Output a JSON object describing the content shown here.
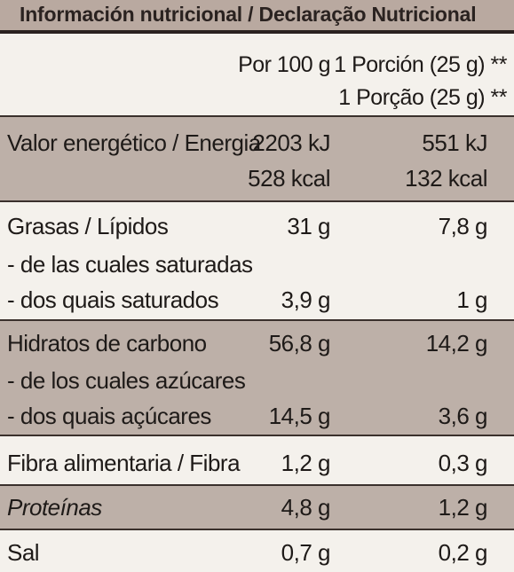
{
  "title": "Información nutricional / Declaração Nutricional",
  "columns": {
    "per100": "Por 100 g",
    "portion_es": "1 Porción (25 g) **",
    "portion_pt": "1 Porção (25 g) **"
  },
  "rows": {
    "energy": {
      "label": "Valor energético / Energia",
      "kj100": "2203 kJ",
      "kcal100": "528 kcal",
      "kjportion": "551 kJ",
      "kcalportion": "132 kcal"
    },
    "fat": {
      "label": "Grasas / Lípidos",
      "v100": "31 g",
      "vportion": "7,8 g"
    },
    "sat_es": {
      "label": "- de las cuales saturadas"
    },
    "sat_pt": {
      "label": "- dos quais saturados",
      "v100": "3,9 g",
      "vportion": "1 g"
    },
    "carbs": {
      "label": "Hidratos de carbono",
      "v100": "56,8 g",
      "vportion": "14,2 g"
    },
    "sugar_es": {
      "label": "- de los cuales azúcares"
    },
    "sugar_pt": {
      "label": "- dos quais açúcares",
      "v100": "14,5 g",
      "vportion": "3,6 g"
    },
    "fibre": {
      "label": "Fibra alimentaria / Fibra",
      "v100": "1,2 g",
      "vportion": "0,3 g"
    },
    "protein": {
      "label": "Proteínas",
      "v100": "4,8 g",
      "vportion": "1,2 g"
    },
    "salt": {
      "label": "Sal",
      "v100": "0,7 g",
      "vportion": "0,2 g"
    }
  },
  "colors": {
    "band": "#bdb0a8",
    "header": "#b9a9a0",
    "rule": "#3a302c",
    "paper": "#f4f1ec"
  }
}
